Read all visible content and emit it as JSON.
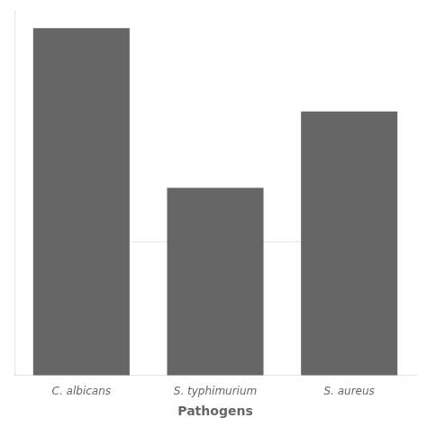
{
  "chart_data": {
    "type": "bar",
    "categories": [
      "C. albicans",
      "S. typhimurium",
      "S. aureus"
    ],
    "values": [
      1.0,
      0.54,
      0.76
    ],
    "color": "#666666",
    "xlabel": "Pathogens",
    "ylim": [
      0,
      1.05
    ],
    "yticks": [],
    "grid": false,
    "tick_labels": "x",
    "hline": 0.385
  }
}
